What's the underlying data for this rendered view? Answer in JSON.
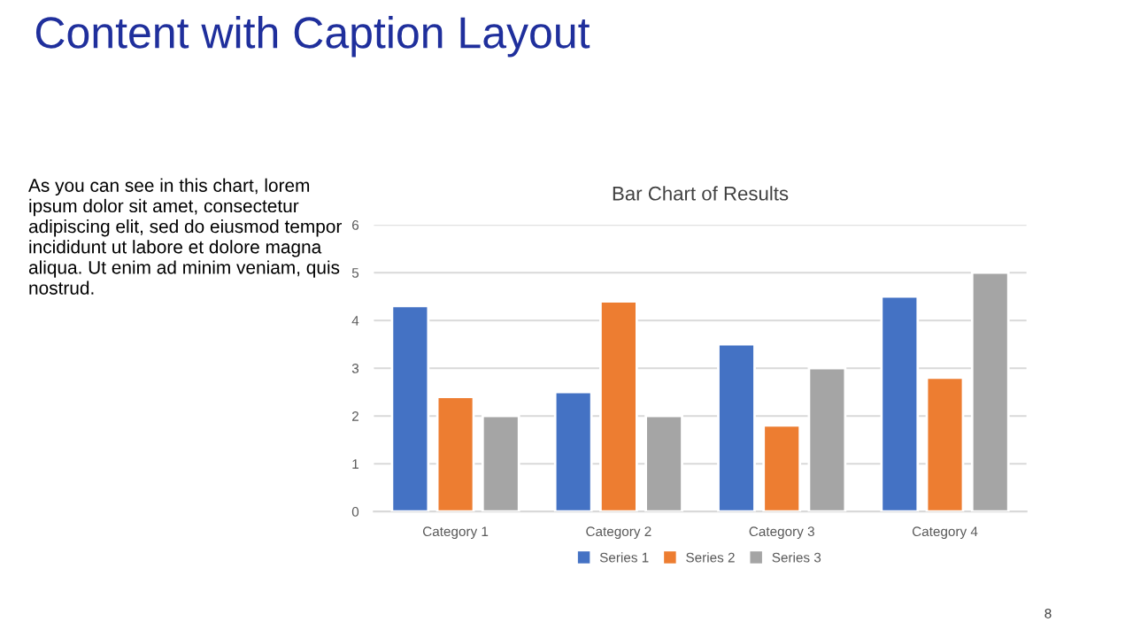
{
  "chart_data": {
    "type": "bar",
    "title": "Bar Chart of Results",
    "categories": [
      "Category 1",
      "Category 2",
      "Category 3",
      "Category 4"
    ],
    "series": [
      {
        "name": "Series 1",
        "color": "#4472c4",
        "values": [
          4.3,
          2.5,
          3.5,
          4.5
        ]
      },
      {
        "name": "Series 2",
        "color": "#ed7d31",
        "values": [
          2.4,
          4.4,
          1.8,
          2.8
        ]
      },
      {
        "name": "Series 3",
        "color": "#a5a5a5",
        "values": [
          2.0,
          2.0,
          3.0,
          5.0
        ]
      }
    ],
    "ylim": [
      0,
      6
    ],
    "yticks": [
      0,
      1,
      2,
      3,
      4,
      5,
      6
    ],
    "grid": "y",
    "legend": "bottom",
    "annotations": [
      "Content with Caption Layout",
      "As you can see in this chart, lorem ipsum dolor sit amet, consectetur adipiscing elit, sed do eiusmod tempor incididunt ut labore et dolore magna aliqua. Ut enim ad minim veniam, quis nostrud.",
      "8"
    ]
  }
}
